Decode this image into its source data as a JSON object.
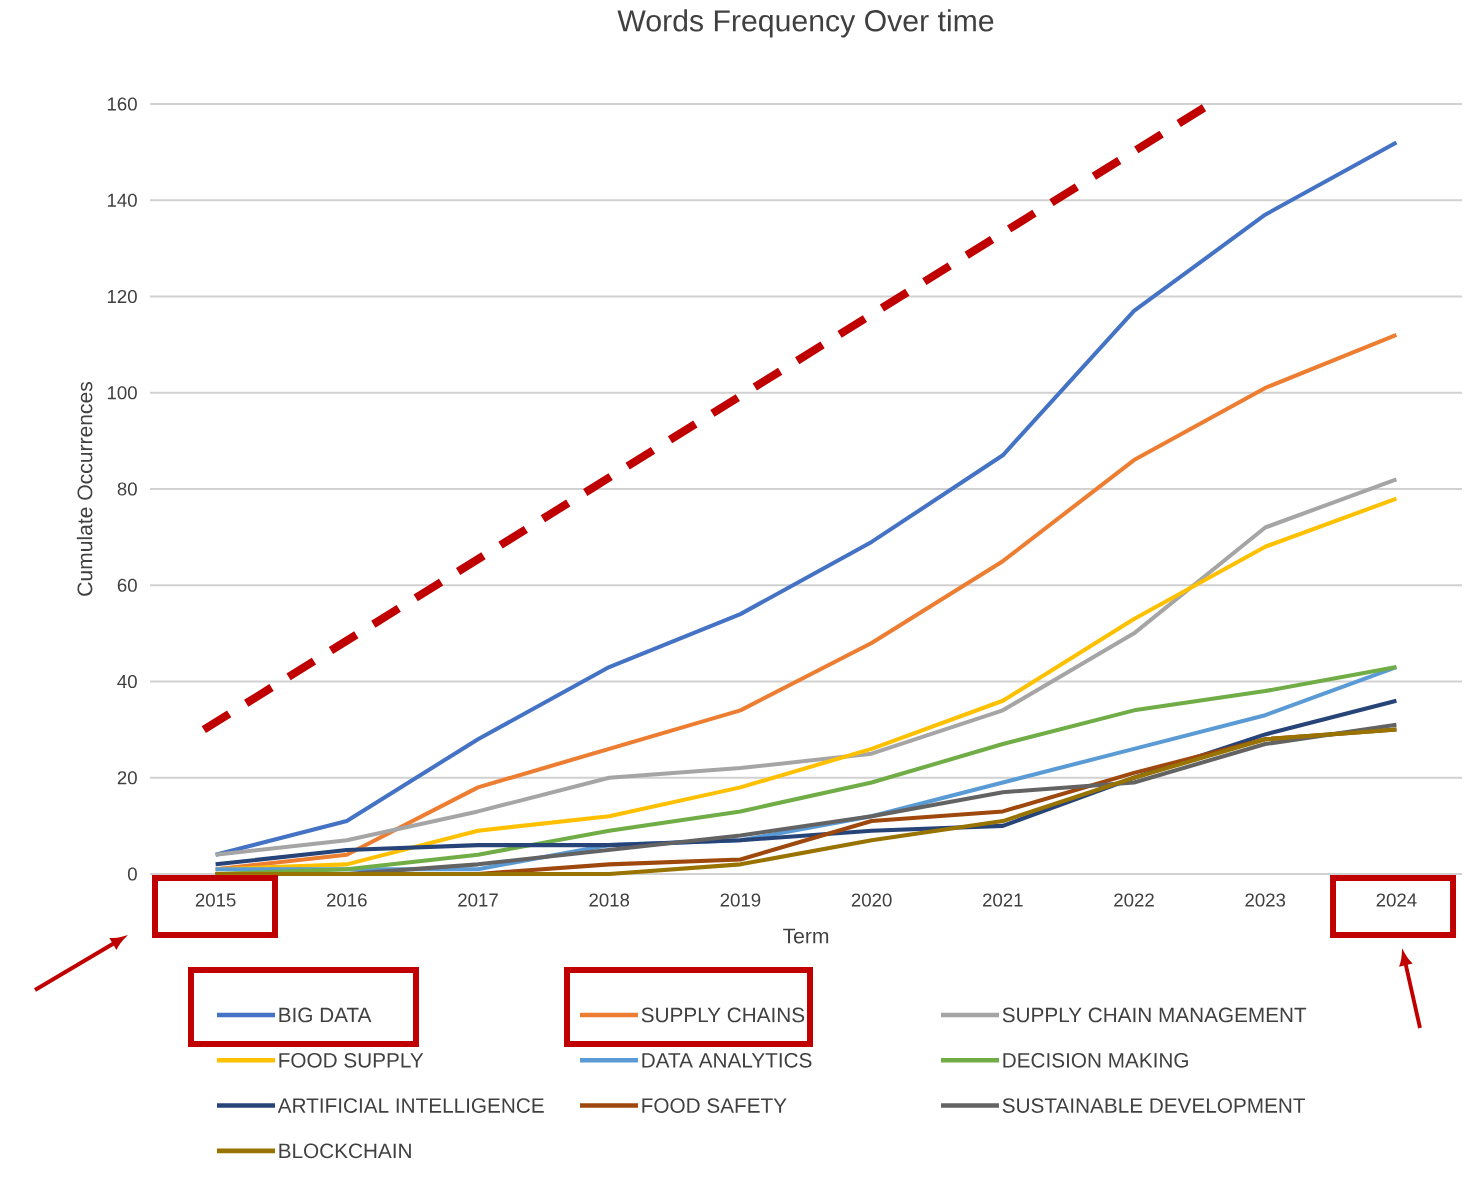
{
  "chart_data": {
    "type": "line",
    "title": "Words Frequency Over time",
    "xlabel": "Term",
    "ylabel": "Cumulate Occurrences",
    "x": [
      2015,
      2016,
      2017,
      2018,
      2019,
      2020,
      2021,
      2022,
      2023,
      2024
    ],
    "xlim": [
      2014.5,
      2024.5
    ],
    "xticks": [
      2015,
      2016,
      2017,
      2018,
      2019,
      2020,
      2021,
      2022,
      2023,
      2024
    ],
    "ylim": [
      0,
      160
    ],
    "yticks": [
      0,
      20,
      40,
      60,
      80,
      100,
      120,
      140,
      160
    ],
    "grid": "y",
    "legend": "bottom",
    "marker": "none",
    "line_style": "solid",
    "series": [
      {
        "name": "BIG DATA",
        "color": "#4472c4",
        "values": [
          4,
          11,
          28,
          43,
          54,
          69,
          87,
          117,
          137,
          152
        ]
      },
      {
        "name": "SUPPLY CHAINS",
        "color": "#ed7d31",
        "values": [
          1,
          4,
          18,
          26,
          34,
          48,
          65,
          86,
          101,
          112
        ]
      },
      {
        "name": "SUPPLY CHAIN MANAGEMENT",
        "color": "#a5a5a5",
        "values": [
          4,
          7,
          13,
          20,
          22,
          25,
          34,
          50,
          72,
          82
        ]
      },
      {
        "name": "FOOD SUPPLY",
        "color": "#ffc000",
        "values": [
          1,
          2,
          9,
          12,
          18,
          26,
          36,
          53,
          68,
          78
        ]
      },
      {
        "name": "DATA ANALYTICS",
        "color": "#5b9bd5",
        "values": [
          1,
          1,
          1,
          6,
          7,
          12,
          19,
          26,
          33,
          43
        ]
      },
      {
        "name": "DECISION MAKING",
        "color": "#70ad47",
        "values": [
          0,
          1,
          4,
          9,
          13,
          19,
          27,
          34,
          38,
          43
        ]
      },
      {
        "name": "ARTIFICIAL INTELLIGENCE",
        "color": "#264478",
        "values": [
          2,
          5,
          6,
          6,
          7,
          9,
          10,
          20,
          29,
          36
        ]
      },
      {
        "name": "FOOD SAFETY",
        "color": "#9e480e",
        "values": [
          0,
          0,
          0,
          2,
          3,
          11,
          13,
          21,
          28,
          30
        ]
      },
      {
        "name": "SUSTAINABLE DEVELOPMENT",
        "color": "#636363",
        "values": [
          0,
          0,
          2,
          5,
          8,
          12,
          17,
          19,
          27,
          31
        ]
      },
      {
        "name": "BLOCKCHAIN",
        "color": "#997300",
        "values": [
          0,
          0,
          0,
          0,
          2,
          7,
          11,
          20,
          28,
          30
        ]
      },
      {
        "type": "line",
        "color": "#c00000",
        "line_style": "dashed",
        "x": [
          2014.91,
          2022.58
        ],
        "values": [
          30,
          160
        ]
      }
    ]
  }
}
